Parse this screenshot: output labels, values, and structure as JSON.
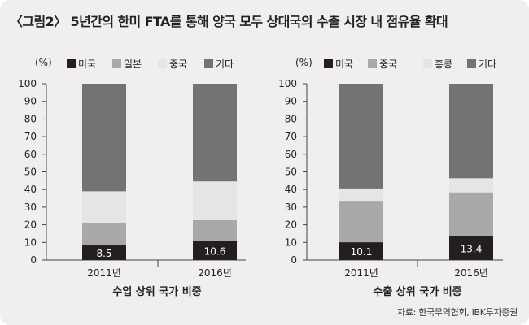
{
  "figure": {
    "title": "〈그림2〉 5년간의 한미 FTA를 통해 양국 모두 상대국의 수출 시장 내 점유율 확대",
    "source": "자료: 한국무역협회, IBK투자증권"
  },
  "colors": {
    "background": "#f0efed",
    "미국": "#231f20",
    "일본": "#a9a9a9",
    "중국_import": "#e5e5e5",
    "중국_export": "#a9a9a9",
    "홍콩": "#e5e5e5",
    "기타": "#737373"
  },
  "chart_data": [
    {
      "type": "bar",
      "stacked": true,
      "title": "수입 상위 국가 비중",
      "ylabel": "(%)",
      "ylim": [
        0,
        100
      ],
      "yticks": [
        0,
        10,
        20,
        30,
        40,
        50,
        60,
        70,
        80,
        90,
        100
      ],
      "categories": [
        "2011년",
        "2016년"
      ],
      "legend_position": "top",
      "series": [
        {
          "name": "미국",
          "values": [
            8.5,
            10.6
          ],
          "color": "#231f20",
          "labels": [
            "8.5",
            "10.6"
          ]
        },
        {
          "name": "일본",
          "values": [
            12.5,
            12.0
          ],
          "color": "#a9a9a9"
        },
        {
          "name": "중국",
          "values": [
            18.0,
            22.0
          ],
          "color": "#e5e5e5"
        },
        {
          "name": "기타",
          "values": [
            61.0,
            55.4
          ],
          "color": "#737373"
        }
      ]
    },
    {
      "type": "bar",
      "stacked": true,
      "title": "수출 상위 국가 비중",
      "ylabel": "(%)",
      "ylim": [
        0,
        100
      ],
      "yticks": [
        0,
        10,
        20,
        30,
        40,
        50,
        60,
        70,
        80,
        90,
        100
      ],
      "categories": [
        "2011년",
        "2016년"
      ],
      "legend_position": "top",
      "series": [
        {
          "name": "미국",
          "values": [
            10.1,
            13.4
          ],
          "color": "#231f20",
          "labels": [
            "10.1",
            "13.4"
          ]
        },
        {
          "name": "중국",
          "values": [
            23.5,
            25.0
          ],
          "color": "#a9a9a9"
        },
        {
          "name": "홍콩",
          "values": [
            7.0,
            8.0
          ],
          "color": "#e5e5e5"
        },
        {
          "name": "기타",
          "values": [
            59.4,
            53.6
          ],
          "color": "#737373"
        }
      ]
    }
  ]
}
